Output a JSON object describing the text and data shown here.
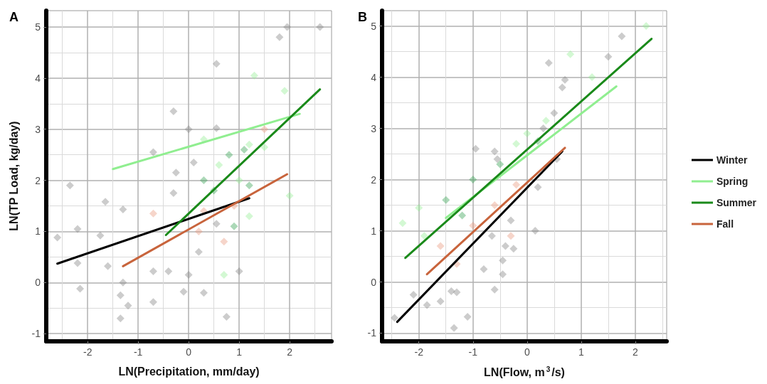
{
  "chart_data": [
    {
      "type": "scatter",
      "title": "A",
      "xlabel": "LN(Precipitation, mm/day)",
      "ylabel": "LN(TP Load, kg/day)",
      "xlim": [
        -2.82,
        2.83
      ],
      "ylim": [
        -1.15,
        5.32
      ],
      "xticks": [
        -2,
        -1,
        0,
        1,
        2
      ],
      "yticks": [
        -1,
        0,
        1,
        2,
        3,
        4,
        5
      ],
      "grid": true,
      "marker": "diamond",
      "series": [
        {
          "color": "#808080",
          "x": [
            -2.6,
            -2.2,
            -2.2,
            -2.15,
            -2.35,
            -1.65,
            -1.75,
            -1.6,
            -1.3,
            -1.3,
            -1.35,
            -1.35,
            -1.2,
            -0.7,
            -0.7,
            -0.4,
            -0.1,
            0,
            0.2,
            0.3,
            0.75,
            1,
            -0.3,
            0,
            0.55,
            0.55,
            1.8,
            1.95,
            2.6,
            -0.7,
            -0.25,
            0.1,
            0.55,
            -0.3
          ],
          "values": [
            0.88,
            1.05,
            0.38,
            -0.12,
            1.9,
            1.58,
            0.92,
            0.32,
            1.43,
            0,
            -0.25,
            -0.7,
            -0.45,
            -0.38,
            0.22,
            0.22,
            -0.18,
            0.15,
            0.6,
            -0.2,
            -0.67,
            0.22,
            3.35,
            3,
            3.02,
            4.28,
            4.8,
            5,
            5,
            2.55,
            2.15,
            2.35,
            1.15,
            1.75
          ]
        },
        {
          "color": "#90ee90",
          "x": [
            1.3,
            1.9,
            1.2,
            0.6,
            1,
            1.5,
            2,
            0.7,
            1.2,
            0.3
          ],
          "values": [
            4.05,
            3.75,
            2.7,
            2.3,
            2,
            2.65,
            1.7,
            0.15,
            1.3,
            2.8
          ]
        },
        {
          "color": "#2e9e4a",
          "x": [
            0.8,
            1.1,
            0.5,
            1.2,
            0.9,
            0.3
          ],
          "values": [
            2.5,
            2.6,
            1.8,
            1.9,
            1.1,
            2
          ]
        },
        {
          "color": "#e9967a",
          "x": [
            0.3,
            0.7,
            1.5,
            0.9,
            -0.7,
            0.2
          ],
          "values": [
            1.4,
            0.8,
            3,
            1.5,
            1.35,
            1
          ]
        },
        {
          "type": "line",
          "marker": "none",
          "color": "#000000",
          "x": [
            -2.6,
            1.2
          ],
          "values": [
            0.37,
            1.65
          ]
        },
        {
          "type": "line",
          "marker": "none",
          "color": "#90ee90",
          "x": [
            -1.5,
            2.2
          ],
          "values": [
            2.22,
            3.3
          ]
        },
        {
          "type": "line",
          "marker": "none",
          "color": "#1a8a1a",
          "x": [
            -0.45,
            2.6
          ],
          "values": [
            0.93,
            3.78
          ]
        },
        {
          "type": "line",
          "marker": "none",
          "color": "#c8643c",
          "x": [
            -1.3,
            1.95
          ],
          "values": [
            0.32,
            2.12
          ]
        }
      ]
    },
    {
      "type": "scatter",
      "title": "B",
      "xlabel": "LN(Flow, m$^{3}$/s)",
      "xlim": [
        -2.68,
        2.58
      ],
      "ylim": [
        -1.16,
        5.3
      ],
      "xticks": [
        -2,
        -1,
        0,
        1,
        2
      ],
      "yticks": [
        -1,
        0,
        1,
        2,
        3,
        4,
        5
      ],
      "grid": true,
      "marker": "diamond",
      "legend": "right",
      "series": [
        {
          "color": "#808080",
          "x": [
            -2.45,
            -2.1,
            -1.85,
            -1.6,
            -1.4,
            -1.3,
            -1.1,
            -1.35,
            -0.6,
            -0.45,
            -0.45,
            -0.8,
            -0.65,
            -0.4,
            -0.25,
            -0.3,
            0.15,
            0.2,
            -0.95,
            -0.6,
            -0.55,
            0.4,
            0.3,
            0.55,
            0.5,
            0.65,
            1.5,
            1.75,
            0.7
          ],
          "values": [
            -0.7,
            -0.25,
            -0.45,
            -0.38,
            -0.18,
            -0.2,
            -0.68,
            -0.9,
            -0.15,
            0.15,
            0.42,
            0.25,
            0.9,
            0.7,
            0.65,
            1.2,
            1,
            1.85,
            2.6,
            2.55,
            2.4,
            4.28,
            3,
            2.4,
            3.3,
            3.8,
            4.4,
            4.8,
            3.95
          ]
        },
        {
          "color": "#90ee90",
          "x": [
            2.2,
            0.8,
            1.2,
            -2.3,
            -1.9,
            -0.2,
            0.35,
            -2,
            0
          ],
          "values": [
            5,
            4.45,
            4,
            1.15,
            0.9,
            2.7,
            3.15,
            1.45,
            2.9
          ]
        },
        {
          "color": "#2e9e4a",
          "x": [
            -1.5,
            -1,
            -0.5,
            0.2,
            -1.2
          ],
          "values": [
            1.6,
            2,
            2.3,
            2.75,
            1.3
          ]
        },
        {
          "color": "#e9967a",
          "x": [
            -1.6,
            -1,
            -0.6,
            -0.3,
            -0.2,
            -1.3
          ],
          "values": [
            0.7,
            1.1,
            1.5,
            0.9,
            1.9,
            0.35
          ]
        },
        {
          "type": "line",
          "marker": "none",
          "name": "Winter",
          "color": "#000000",
          "x": [
            -2.4,
            0.65
          ],
          "values": [
            -0.78,
            2.55
          ]
        },
        {
          "type": "line",
          "marker": "none",
          "name": "Spring",
          "color": "#90ee90",
          "x": [
            -1.5,
            1.65
          ],
          "values": [
            1.25,
            3.82
          ]
        },
        {
          "type": "line",
          "marker": "none",
          "name": "Summer",
          "color": "#1a8a1a",
          "x": [
            -2.25,
            2.3
          ],
          "values": [
            0.47,
            4.75
          ]
        },
        {
          "type": "line",
          "marker": "none",
          "name": "Fall",
          "color": "#c8643c",
          "x": [
            -1.85,
            0.7
          ],
          "values": [
            0.15,
            2.62
          ]
        }
      ]
    }
  ]
}
